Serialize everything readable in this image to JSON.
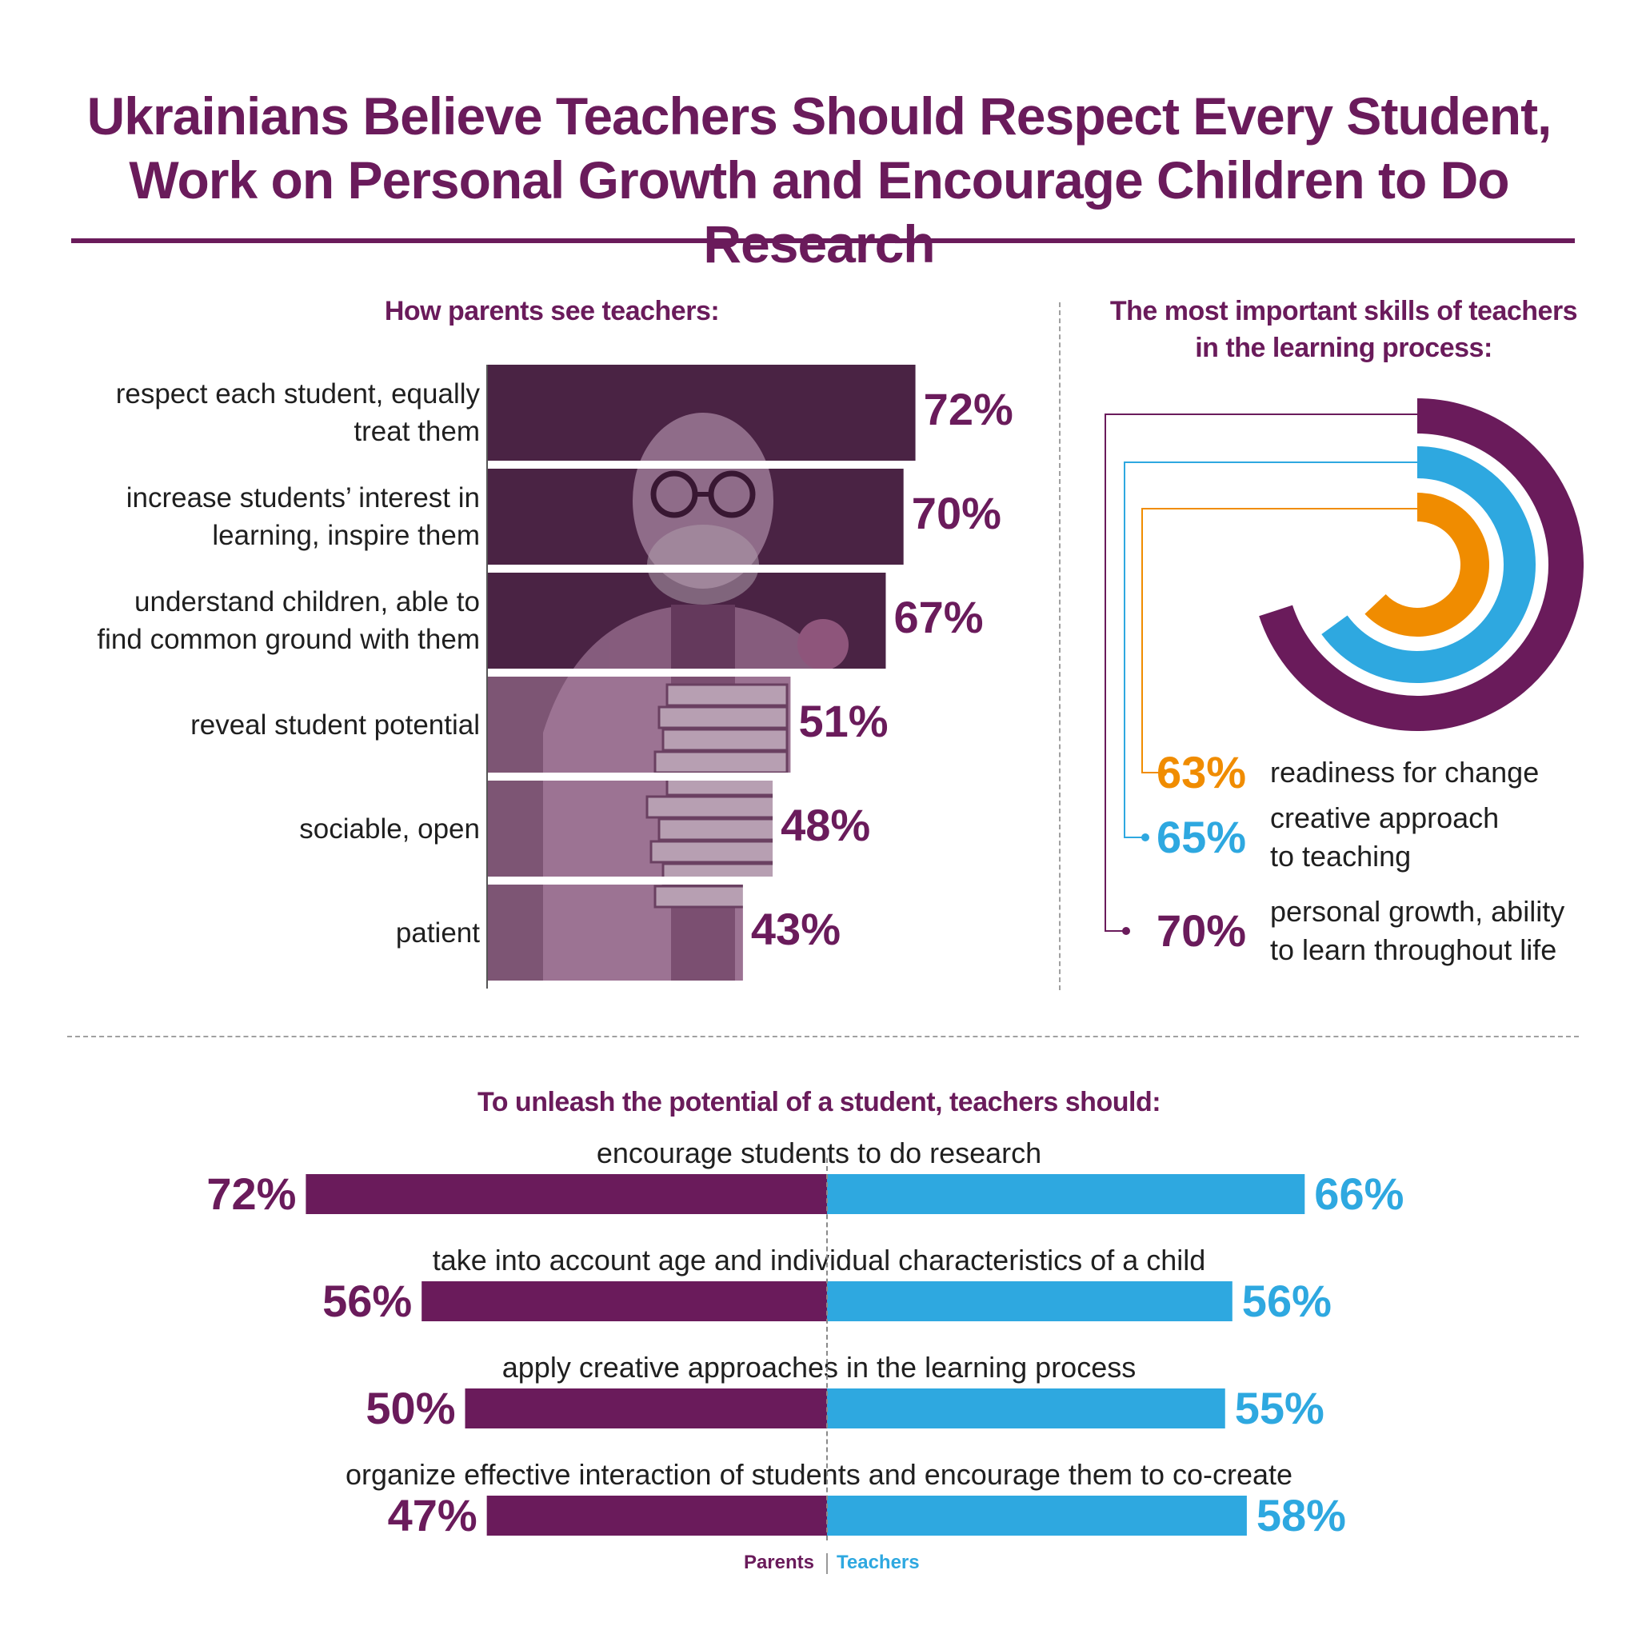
{
  "title": {
    "line1": "Ukrainians Believe Teachers Should Respect Every Student,",
    "line2": "Work on Personal Growth and Encourage Children to Do Research"
  },
  "colors": {
    "parents": "#6a1b5b",
    "teachers": "#2ea8e0",
    "orange": "#f08c00"
  },
  "chart_data": [
    {
      "type": "bar",
      "orientation": "horizontal",
      "title": "How parents see teachers:",
      "categories": [
        "respect each student, equally treat them",
        "increase students’ interest in learning, inspire them",
        "understand children, able to find common ground with them",
        "reveal student potential",
        "sociable, open",
        "patient"
      ],
      "label_lines": [
        [
          "respect each student, equally",
          "treat them"
        ],
        [
          "increase students’ interest in",
          "learning, inspire them"
        ],
        [
          "understand children, able to",
          "find common ground with them"
        ],
        [
          "reveal student potential"
        ],
        [
          "sociable, open"
        ],
        [
          "patient"
        ]
      ],
      "values": [
        72,
        70,
        67,
        51,
        48,
        43
      ],
      "value_labels": [
        "72%",
        "70%",
        "67%",
        "51%",
        "48%",
        "43%"
      ],
      "xlim": [
        0,
        100
      ]
    },
    {
      "type": "radial",
      "title": "The most important skills of teachers in the learning process:",
      "categories": [
        "readiness for change",
        "creative approach to teaching",
        "personal growth, ability to learn throughout life"
      ],
      "label_lines": [
        [
          "readiness for change"
        ],
        [
          "creative approach",
          "to teaching"
        ],
        [
          "personal growth, ability",
          "to learn throughout life"
        ]
      ],
      "values": [
        63,
        65,
        70
      ],
      "value_labels": [
        "63%",
        "65%",
        "70%"
      ],
      "colors": [
        "#f08c00",
        "#2ea8e0",
        "#6a1b5b"
      ]
    },
    {
      "type": "bar",
      "orientation": "diverging",
      "title": "To unleash the potential of a student, teachers should:",
      "categories": [
        "encourage students to do research",
        "take into account age and individual characteristics of a child",
        "apply creative approaches in the learning process",
        "organize effective interaction of students and encourage them to co-create"
      ],
      "series": [
        {
          "name": "Parents",
          "values": [
            72,
            56,
            50,
            47
          ],
          "value_labels": [
            "72%",
            "56%",
            "50%",
            "47%"
          ]
        },
        {
          "name": "Teachers",
          "values": [
            66,
            56,
            55,
            58
          ],
          "value_labels": [
            "66%",
            "56%",
            "55%",
            "58%"
          ]
        }
      ],
      "xlim": [
        0,
        100
      ]
    }
  ]
}
